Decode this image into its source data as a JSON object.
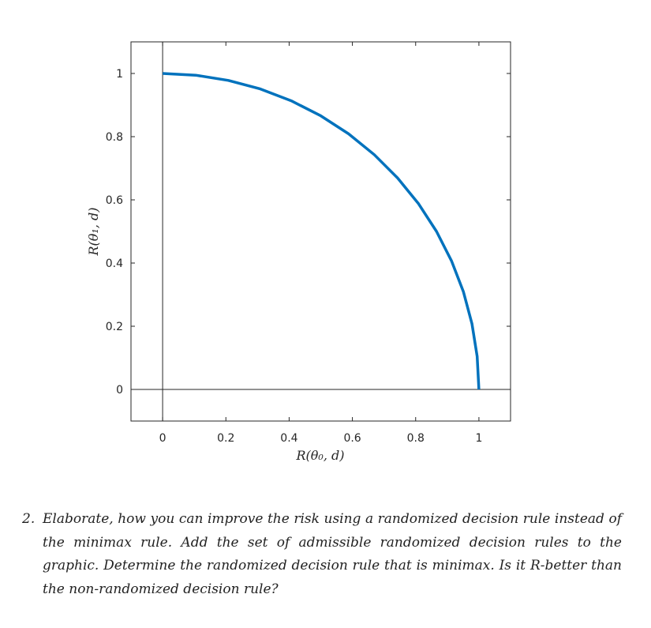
{
  "chart_data": {
    "type": "line",
    "xlabel": "R(θ₀, d)",
    "ylabel": "R(θ₁, d)",
    "xlim": [
      -0.1,
      1.1
    ],
    "ylim": [
      -0.1,
      1.1
    ],
    "xticks": [
      0,
      0.2,
      0.4,
      0.6,
      0.8,
      1
    ],
    "yticks": [
      0,
      0.2,
      0.4,
      0.6,
      0.8,
      1
    ],
    "xtick_labels": [
      "0",
      "0.2",
      "0.4",
      "0.6",
      "0.8",
      "1"
    ],
    "ytick_labels": [
      "0",
      "0.2",
      "0.4",
      "0.6",
      "0.8",
      "1"
    ],
    "reference_lines": [
      {
        "axis": "x",
        "value": 0
      },
      {
        "axis": "y",
        "value": 0
      }
    ],
    "series": [
      {
        "x": [
          0,
          0.1045,
          0.2079,
          0.309,
          0.4067,
          0.5,
          0.5878,
          0.6691,
          0.7431,
          0.809,
          0.866,
          0.9135,
          0.9511,
          0.9781,
          0.9945,
          1
        ],
        "y": [
          1,
          0.9945,
          0.9781,
          0.9511,
          0.9135,
          0.866,
          0.809,
          0.7431,
          0.6691,
          0.5878,
          0.5,
          0.4067,
          0.309,
          0.2079,
          0.1045,
          0
        ],
        "color": "#0072bd"
      }
    ],
    "grid": false,
    "legend": null
  },
  "question": {
    "number": "2.",
    "text": "Elaborate, how you can improve the risk using a randomized decision rule instead of the minimax rule. Add the set of admissible randomized decision rules to the graphic. Determine the randomized decision rule that is minimax. Is it R-better than the non-randomized decision rule?"
  }
}
